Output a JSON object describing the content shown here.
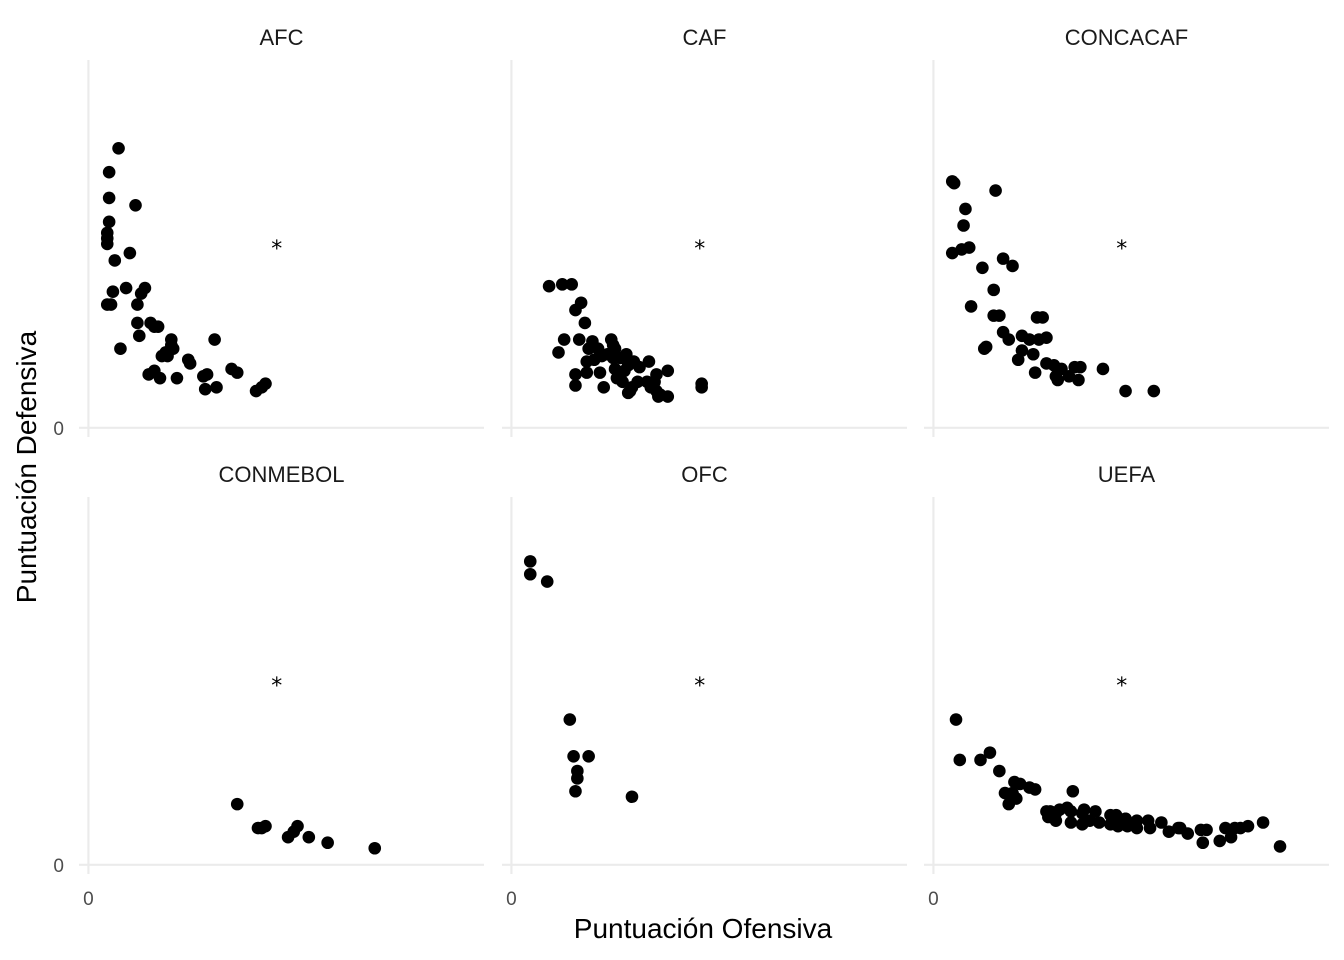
{
  "chart_data": {
    "type": "scatter",
    "xlabel": "Puntuación Ofensiva",
    "ylabel": "Puntuación Defensiva",
    "grid": "x=0 and y=0 lines only",
    "xlim": [
      -0.05,
      2.1
    ],
    "ylim": [
      -0.05,
      2.0
    ],
    "x_ticks": [
      {
        "value": 0,
        "label": "0"
      }
    ],
    "y_ticks": [
      {
        "value": 0,
        "label": "0"
      }
    ],
    "point_color": "#000000",
    "reference_point": {
      "x": 1,
      "y": 1,
      "marker": "*"
    },
    "panels": [
      {
        "name": "AFC",
        "points": [
          [
            0.16,
            1.52
          ],
          [
            0.11,
            1.39
          ],
          [
            0.11,
            1.25
          ],
          [
            0.11,
            1.12
          ],
          [
            0.1,
            1.06
          ],
          [
            0.1,
            1.03
          ],
          [
            0.1,
            1.0
          ],
          [
            0.25,
            1.21
          ],
          [
            0.14,
            0.91
          ],
          [
            0.22,
            0.95
          ],
          [
            0.13,
            0.74
          ],
          [
            0.12,
            0.67
          ],
          [
            0.1,
            0.67
          ],
          [
            0.2,
            0.76
          ],
          [
            0.3,
            0.76
          ],
          [
            0.28,
            0.73
          ],
          [
            0.26,
            0.67
          ],
          [
            0.26,
            0.57
          ],
          [
            0.27,
            0.5
          ],
          [
            0.33,
            0.57
          ],
          [
            0.35,
            0.55
          ],
          [
            0.37,
            0.55
          ],
          [
            0.44,
            0.48
          ],
          [
            0.45,
            0.43
          ],
          [
            0.44,
            0.45
          ],
          [
            0.41,
            0.41
          ],
          [
            0.39,
            0.39
          ],
          [
            0.42,
            0.39
          ],
          [
            0.53,
            0.37
          ],
          [
            0.54,
            0.35
          ],
          [
            0.67,
            0.48
          ],
          [
            0.35,
            0.31
          ],
          [
            0.32,
            0.29
          ],
          [
            0.38,
            0.27
          ],
          [
            0.47,
            0.27
          ],
          [
            0.61,
            0.28
          ],
          [
            0.63,
            0.29
          ],
          [
            0.79,
            0.3
          ],
          [
            0.76,
            0.32
          ],
          [
            0.68,
            0.22
          ],
          [
            0.62,
            0.21
          ],
          [
            0.94,
            0.24
          ],
          [
            0.92,
            0.22
          ],
          [
            0.89,
            0.2
          ],
          [
            0.17,
            0.43
          ]
        ]
      },
      {
        "name": "CAF",
        "points": [
          [
            0.2,
            0.77
          ],
          [
            0.27,
            0.78
          ],
          [
            0.32,
            0.78
          ],
          [
            0.37,
            0.68
          ],
          [
            0.34,
            0.64
          ],
          [
            0.39,
            0.57
          ],
          [
            0.28,
            0.48
          ],
          [
            0.36,
            0.48
          ],
          [
            0.43,
            0.47
          ],
          [
            0.53,
            0.48
          ],
          [
            0.25,
            0.41
          ],
          [
            0.41,
            0.43
          ],
          [
            0.46,
            0.43
          ],
          [
            0.54,
            0.45
          ],
          [
            0.55,
            0.43
          ],
          [
            0.61,
            0.4
          ],
          [
            0.54,
            0.38
          ],
          [
            0.58,
            0.38
          ],
          [
            0.51,
            0.4
          ],
          [
            0.48,
            0.39
          ],
          [
            0.44,
            0.37
          ],
          [
            0.4,
            0.36
          ],
          [
            0.65,
            0.36
          ],
          [
            0.73,
            0.36
          ],
          [
            0.62,
            0.34
          ],
          [
            0.55,
            0.32
          ],
          [
            0.47,
            0.3
          ],
          [
            0.6,
            0.31
          ],
          [
            0.68,
            0.33
          ],
          [
            0.83,
            0.31
          ],
          [
            0.4,
            0.3
          ],
          [
            0.34,
            0.29
          ],
          [
            0.77,
            0.29
          ],
          [
            0.56,
            0.27
          ],
          [
            0.59,
            0.25
          ],
          [
            0.67,
            0.25
          ],
          [
            0.72,
            0.25
          ],
          [
            0.76,
            0.25
          ],
          [
            1.01,
            0.24
          ],
          [
            1.01,
            0.22
          ],
          [
            0.34,
            0.23
          ],
          [
            0.49,
            0.22
          ],
          [
            0.64,
            0.22
          ],
          [
            0.74,
            0.22
          ],
          [
            0.77,
            0.2
          ],
          [
            0.79,
            0.18
          ],
          [
            0.63,
            0.2
          ],
          [
            0.83,
            0.17
          ],
          [
            0.78,
            0.17
          ],
          [
            0.62,
            0.19
          ]
        ]
      },
      {
        "name": "CONCACAF",
        "points": [
          [
            0.1,
            1.34
          ],
          [
            0.11,
            1.33
          ],
          [
            0.33,
            1.29
          ],
          [
            0.17,
            1.19
          ],
          [
            0.16,
            1.1
          ],
          [
            0.15,
            0.97
          ],
          [
            0.19,
            0.98
          ],
          [
            0.1,
            0.95
          ],
          [
            0.37,
            0.92
          ],
          [
            0.42,
            0.88
          ],
          [
            0.26,
            0.87
          ],
          [
            0.32,
            0.75
          ],
          [
            0.2,
            0.66
          ],
          [
            0.32,
            0.61
          ],
          [
            0.35,
            0.61
          ],
          [
            0.55,
            0.6
          ],
          [
            0.58,
            0.6
          ],
          [
            0.37,
            0.52
          ],
          [
            0.4,
            0.48
          ],
          [
            0.47,
            0.5
          ],
          [
            0.51,
            0.48
          ],
          [
            0.56,
            0.48
          ],
          [
            0.6,
            0.49
          ],
          [
            0.47,
            0.42
          ],
          [
            0.53,
            0.4
          ],
          [
            0.28,
            0.44
          ],
          [
            0.27,
            0.43
          ],
          [
            0.45,
            0.37
          ],
          [
            0.6,
            0.35
          ],
          [
            0.64,
            0.34
          ],
          [
            0.68,
            0.32
          ],
          [
            0.75,
            0.33
          ],
          [
            0.78,
            0.33
          ],
          [
            0.9,
            0.32
          ],
          [
            0.54,
            0.3
          ],
          [
            0.65,
            0.28
          ],
          [
            0.72,
            0.28
          ],
          [
            0.66,
            0.26
          ],
          [
            0.77,
            0.26
          ],
          [
            1.02,
            0.2
          ],
          [
            1.17,
            0.2
          ]
        ]
      },
      {
        "name": "CONMEBOL",
        "points": [
          [
            0.79,
            0.33
          ],
          [
            0.9,
            0.2
          ],
          [
            0.92,
            0.2
          ],
          [
            0.94,
            0.21
          ],
          [
            1.11,
            0.21
          ],
          [
            1.09,
            0.18
          ],
          [
            1.06,
            0.15
          ],
          [
            1.17,
            0.15
          ],
          [
            1.27,
            0.12
          ],
          [
            1.52,
            0.09
          ]
        ]
      },
      {
        "name": "OFC",
        "points": [
          [
            0.1,
            1.65
          ],
          [
            0.1,
            1.58
          ],
          [
            0.19,
            1.54
          ],
          [
            0.31,
            0.79
          ],
          [
            0.33,
            0.59
          ],
          [
            0.35,
            0.51
          ],
          [
            0.35,
            0.47
          ],
          [
            0.41,
            0.59
          ],
          [
            0.34,
            0.4
          ],
          [
            0.64,
            0.37
          ]
        ]
      },
      {
        "name": "UEFA",
        "points": [
          [
            0.12,
            0.79
          ],
          [
            0.14,
            0.57
          ],
          [
            0.25,
            0.57
          ],
          [
            0.3,
            0.61
          ],
          [
            0.35,
            0.51
          ],
          [
            0.43,
            0.45
          ],
          [
            0.46,
            0.44
          ],
          [
            0.51,
            0.42
          ],
          [
            0.54,
            0.41
          ],
          [
            0.42,
            0.39
          ],
          [
            0.38,
            0.39
          ],
          [
            0.41,
            0.37
          ],
          [
            0.44,
            0.36
          ],
          [
            0.4,
            0.33
          ],
          [
            0.74,
            0.4
          ],
          [
            0.67,
            0.3
          ],
          [
            0.71,
            0.31
          ],
          [
            0.73,
            0.29
          ],
          [
            0.79,
            0.28
          ],
          [
            0.65,
            0.28
          ],
          [
            0.62,
            0.29
          ],
          [
            0.6,
            0.29
          ],
          [
            0.8,
            0.3
          ],
          [
            0.86,
            0.29
          ],
          [
            0.94,
            0.27
          ],
          [
            0.97,
            0.27
          ],
          [
            1.02,
            0.25
          ],
          [
            1.02,
            0.25
          ],
          [
            1.08,
            0.24
          ],
          [
            1.14,
            0.24
          ],
          [
            1.21,
            0.23
          ],
          [
            1.3,
            0.2
          ],
          [
            1.31,
            0.2
          ],
          [
            1.42,
            0.19
          ],
          [
            1.45,
            0.19
          ],
          [
            1.55,
            0.2
          ],
          [
            1.6,
            0.2
          ],
          [
            1.63,
            0.2
          ],
          [
            1.67,
            0.21
          ],
          [
            1.75,
            0.23
          ],
          [
            0.61,
            0.26
          ],
          [
            0.65,
            0.24
          ],
          [
            0.73,
            0.23
          ],
          [
            0.79,
            0.22
          ],
          [
            0.83,
            0.24
          ],
          [
            0.88,
            0.23
          ],
          [
            0.94,
            0.22
          ],
          [
            0.98,
            0.21
          ],
          [
            1.03,
            0.21
          ],
          [
            1.08,
            0.2
          ],
          [
            1.15,
            0.2
          ],
          [
            1.25,
            0.18
          ],
          [
            1.35,
            0.17
          ],
          [
            1.58,
            0.15
          ],
          [
            1.84,
            0.1
          ],
          [
            1.52,
            0.13
          ],
          [
            1.43,
            0.12
          ]
        ]
      }
    ]
  }
}
